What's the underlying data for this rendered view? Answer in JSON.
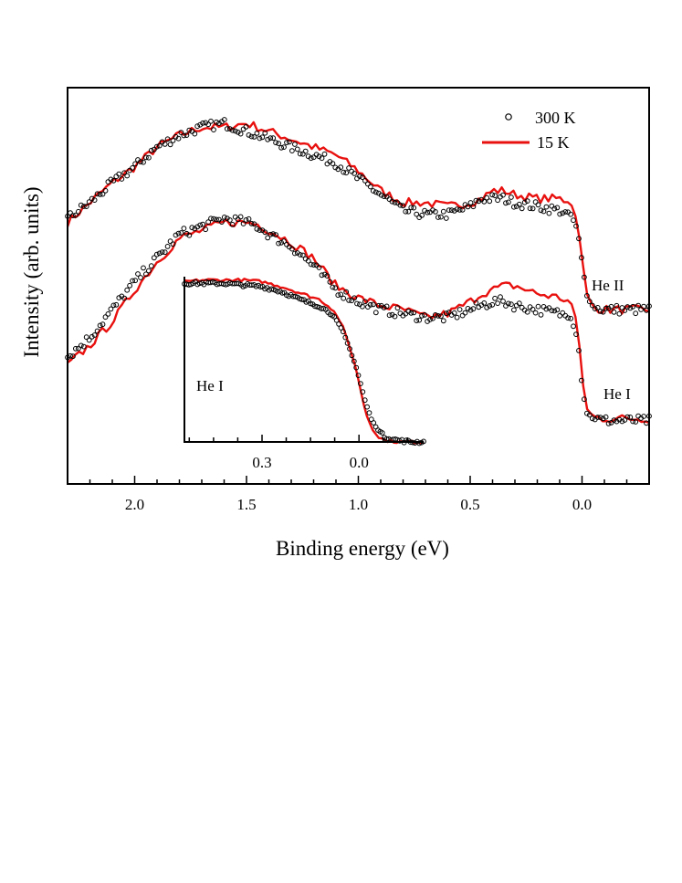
{
  "chart_data": [
    {
      "type": "line",
      "role": "main",
      "xlabel": "Binding energy (eV)",
      "ylabel": "Intensity (arb. units)",
      "xlim": [
        2.3,
        -0.3
      ],
      "x_reversed": true,
      "ylim": [
        0,
        1
      ],
      "xticks": [
        2.0,
        1.5,
        1.0,
        0.5,
        0.0
      ],
      "xtick_labels": [
        "2.0",
        "1.5",
        "1.0",
        "0.5",
        "0.0"
      ],
      "xminor_step": 0.1,
      "yticks": [],
      "legend": {
        "position": "top-right",
        "entries": [
          {
            "label": "300 K",
            "marker": "open-circle",
            "color": "#000000"
          },
          {
            "label": "15 K",
            "marker": "line",
            "color": "#e8110f"
          }
        ]
      },
      "series": [
        {
          "name": "He II 15 K",
          "style": "line",
          "color": "#e8110f",
          "x": [
            2.3,
            2.2,
            2.1,
            2.0,
            1.9,
            1.8,
            1.7,
            1.6,
            1.5,
            1.45,
            1.4,
            1.3,
            1.2,
            1.1,
            1.0,
            0.9,
            0.8,
            0.7,
            0.6,
            0.5,
            0.45,
            0.4,
            0.35,
            0.3,
            0.2,
            0.1,
            0.05,
            0.02,
            0.0,
            -0.02,
            -0.05,
            -0.1,
            -0.2,
            -0.3
          ],
          "y": [
            0.66,
            0.71,
            0.76,
            0.8,
            0.85,
            0.88,
            0.9,
            0.9,
            0.91,
            0.9,
            0.89,
            0.87,
            0.85,
            0.83,
            0.79,
            0.74,
            0.71,
            0.71,
            0.7,
            0.71,
            0.72,
            0.74,
            0.74,
            0.73,
            0.72,
            0.72,
            0.71,
            0.66,
            0.57,
            0.48,
            0.445,
            0.44,
            0.44,
            0.44
          ]
        },
        {
          "name": "He II 300 K",
          "style": "markers",
          "color": "#000000",
          "x": [
            2.3,
            2.2,
            2.1,
            2.0,
            1.9,
            1.8,
            1.7,
            1.6,
            1.5,
            1.45,
            1.4,
            1.3,
            1.2,
            1.1,
            1.0,
            0.9,
            0.8,
            0.7,
            0.6,
            0.5,
            0.45,
            0.4,
            0.35,
            0.3,
            0.2,
            0.1,
            0.05,
            0.02,
            0.0,
            -0.02,
            -0.05,
            -0.1,
            -0.2,
            -0.3
          ],
          "y": [
            0.67,
            0.71,
            0.76,
            0.8,
            0.85,
            0.88,
            0.9,
            0.91,
            0.89,
            0.88,
            0.87,
            0.85,
            0.83,
            0.81,
            0.77,
            0.73,
            0.69,
            0.68,
            0.68,
            0.7,
            0.72,
            0.72,
            0.72,
            0.71,
            0.7,
            0.69,
            0.68,
            0.64,
            0.56,
            0.48,
            0.445,
            0.44,
            0.44,
            0.44
          ]
        },
        {
          "name": "He I 15 K",
          "style": "line",
          "color": "#e8110f",
          "x": [
            2.3,
            2.2,
            2.1,
            2.0,
            1.9,
            1.8,
            1.7,
            1.6,
            1.5,
            1.45,
            1.4,
            1.3,
            1.2,
            1.1,
            1.0,
            0.9,
            0.8,
            0.7,
            0.6,
            0.5,
            0.45,
            0.4,
            0.35,
            0.3,
            0.2,
            0.1,
            0.05,
            0.02,
            0.0,
            -0.02,
            -0.05,
            -0.1,
            -0.2,
            -0.3
          ],
          "y": [
            0.3,
            0.35,
            0.41,
            0.49,
            0.56,
            0.62,
            0.64,
            0.66,
            0.66,
            0.655,
            0.64,
            0.61,
            0.57,
            0.5,
            0.47,
            0.45,
            0.44,
            0.42,
            0.43,
            0.46,
            0.48,
            0.49,
            0.5,
            0.5,
            0.48,
            0.47,
            0.46,
            0.4,
            0.27,
            0.19,
            0.17,
            0.165,
            0.165,
            0.165
          ]
        },
        {
          "name": "He I 300 K",
          "style": "markers",
          "color": "#000000",
          "x": [
            2.3,
            2.2,
            2.1,
            2.0,
            1.9,
            1.8,
            1.7,
            1.6,
            1.5,
            1.45,
            1.4,
            1.3,
            1.2,
            1.1,
            1.0,
            0.9,
            0.8,
            0.7,
            0.6,
            0.5,
            0.45,
            0.4,
            0.35,
            0.3,
            0.2,
            0.1,
            0.05,
            0.02,
            0.0,
            -0.02,
            -0.05,
            -0.1,
            -0.2,
            -0.3
          ],
          "y": [
            0.32,
            0.37,
            0.44,
            0.51,
            0.57,
            0.63,
            0.65,
            0.67,
            0.66,
            0.65,
            0.63,
            0.6,
            0.55,
            0.49,
            0.46,
            0.44,
            0.43,
            0.42,
            0.42,
            0.44,
            0.45,
            0.46,
            0.46,
            0.45,
            0.44,
            0.43,
            0.42,
            0.37,
            0.25,
            0.18,
            0.165,
            0.16,
            0.16,
            0.16
          ]
        }
      ],
      "annotations": [
        {
          "text": "He II",
          "near_series": "He II 15 K"
        },
        {
          "text": "He I",
          "near_series": "He I 15 K"
        }
      ]
    },
    {
      "type": "line",
      "role": "inset",
      "xlim": [
        0.54,
        -0.2
      ],
      "x_reversed": true,
      "ylim": [
        0,
        1
      ],
      "xticks": [
        0.3,
        0.0
      ],
      "xtick_labels": [
        "0.3",
        "0.0"
      ],
      "xminor_step": 0.075,
      "annotations": [
        {
          "text": "He I"
        }
      ],
      "series": [
        {
          "name": "He I 15 K (inset)",
          "style": "line",
          "color": "#e8110f",
          "x": [
            0.54,
            0.48,
            0.42,
            0.36,
            0.3,
            0.24,
            0.18,
            0.12,
            0.08,
            0.05,
            0.03,
            0.01,
            0.0,
            -0.02,
            -0.04,
            -0.06,
            -0.08,
            -0.12,
            -0.16,
            -0.2
          ],
          "y": [
            0.97,
            0.98,
            0.98,
            0.98,
            0.97,
            0.94,
            0.9,
            0.86,
            0.8,
            0.7,
            0.58,
            0.45,
            0.36,
            0.18,
            0.08,
            0.03,
            0.01,
            0.0,
            0.0,
            0.0
          ]
        },
        {
          "name": "He I 300 K (inset)",
          "style": "markers",
          "color": "#000000",
          "x": [
            0.54,
            0.48,
            0.42,
            0.36,
            0.3,
            0.24,
            0.18,
            0.12,
            0.08,
            0.05,
            0.03,
            0.01,
            0.0,
            -0.02,
            -0.04,
            -0.06,
            -0.08,
            -0.12,
            -0.16,
            -0.2
          ],
          "y": [
            0.96,
            0.96,
            0.96,
            0.95,
            0.94,
            0.91,
            0.86,
            0.82,
            0.77,
            0.67,
            0.57,
            0.46,
            0.39,
            0.24,
            0.13,
            0.07,
            0.03,
            0.01,
            0.0,
            0.0
          ]
        }
      ]
    }
  ]
}
